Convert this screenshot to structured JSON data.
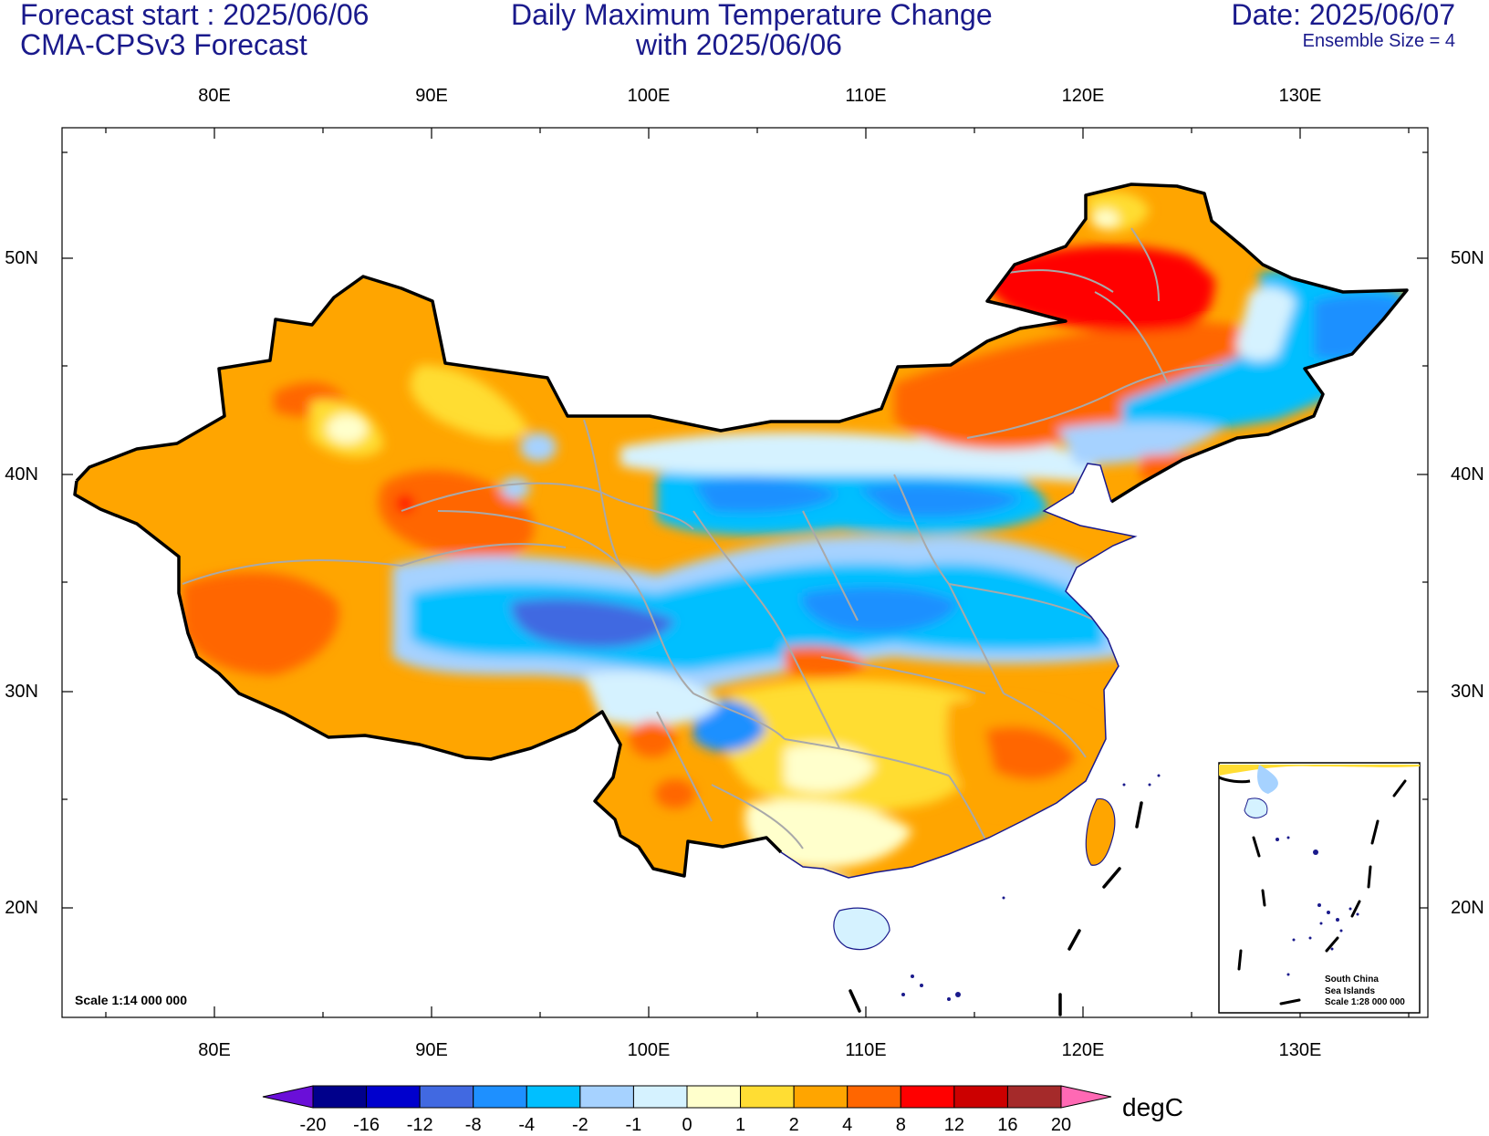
{
  "header": {
    "forecast_start": "Forecast start : 2025/06/06",
    "model": "CMA-CPSv3 Forecast",
    "title_line1": "Daily Maximum Temperature Change",
    "title_line2": "with 2025/06/06",
    "date": "Date: 2025/06/07",
    "ensemble": "Ensemble Size = 4"
  },
  "map": {
    "lon_ticks": [
      "80E",
      "90E",
      "100E",
      "110E",
      "120E",
      "130E"
    ],
    "lat_ticks": [
      "50N",
      "40N",
      "30N",
      "20N"
    ],
    "scale": "Scale 1:14 000 000",
    "inset": {
      "line1": "South China",
      "line2": "Sea Islands",
      "line3": "Scale 1:28 000 000"
    }
  },
  "colorbar": {
    "unit": "degC",
    "labels": [
      "-20",
      "-16",
      "-12",
      "-8",
      "-4",
      "-2",
      "-1",
      "0",
      "1",
      "2",
      "4",
      "8",
      "12",
      "16",
      "20"
    ],
    "colors": [
      "#6a0fd8",
      "#00008b",
      "#0000cd",
      "#4169e1",
      "#1e90ff",
      "#00bfff",
      "#a6d2ff",
      "#d5f2ff",
      "#ffffcc",
      "#ffdd33",
      "#ffa500",
      "#ff6600",
      "#ff0000",
      "#cc0000",
      "#a52a2a",
      "#ff69b4"
    ]
  }
}
